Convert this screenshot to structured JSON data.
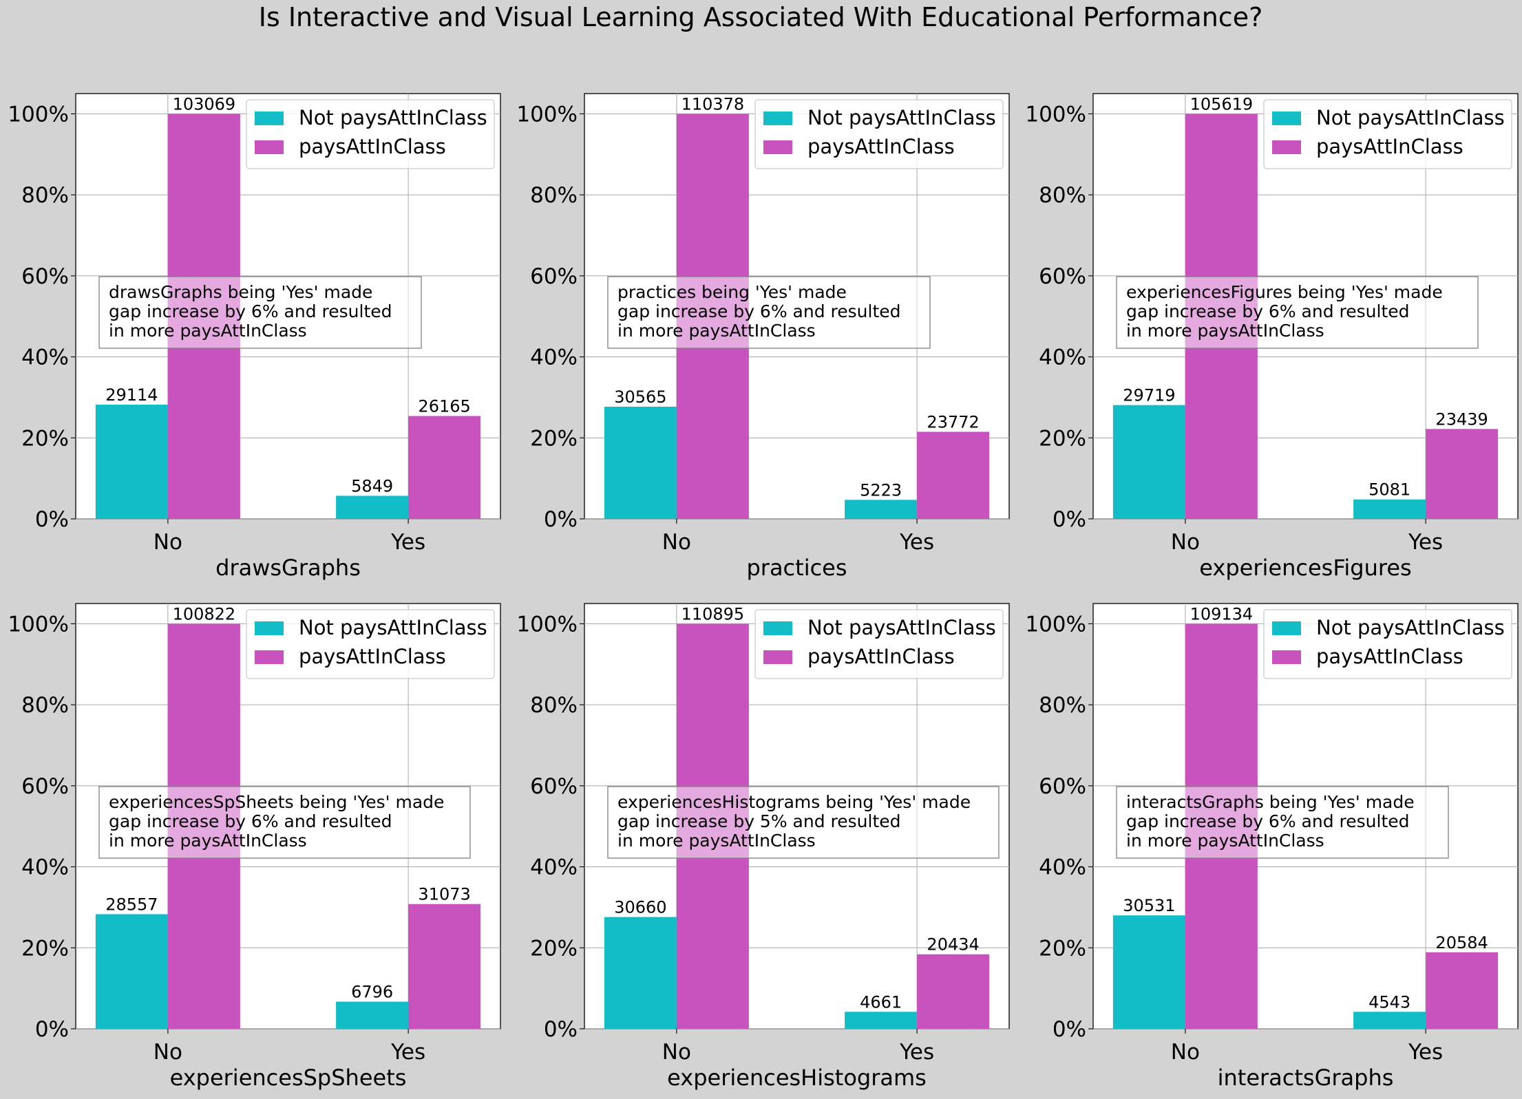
{
  "figure": {
    "title": "Is Interactive and Visual Learning Associated With Educational Performance?"
  },
  "colors": {
    "not_pays": "#12bdc7",
    "pays": "#c853be"
  },
  "chart_data": [
    {
      "type": "bar",
      "xlabel": "drawsGraphs",
      "categories": [
        "No",
        "Yes"
      ],
      "ylim": [
        0,
        105
      ],
      "yticks": [
        "0%",
        "20%",
        "40%",
        "60%",
        "80%",
        "100%"
      ],
      "legend": [
        "Not paysAttInClass",
        "paysAttInClass"
      ],
      "legend_position": "top-right",
      "grid": true,
      "series": [
        {
          "name": "Not paysAttInClass",
          "values": [
            28.2,
            5.7
          ],
          "labels": [
            "29114",
            "5849"
          ]
        },
        {
          "name": "paysAttInClass",
          "values": [
            100,
            25.4
          ],
          "labels": [
            "103069",
            "26165"
          ]
        }
      ],
      "annotation": [
        "drawsGraphs being 'Yes' made",
        "gap increase by 6% and resulted",
        "in more paysAttInClass"
      ]
    },
    {
      "type": "bar",
      "xlabel": "practices",
      "categories": [
        "No",
        "Yes"
      ],
      "ylim": [
        0,
        105
      ],
      "yticks": [
        "0%",
        "20%",
        "40%",
        "60%",
        "80%",
        "100%"
      ],
      "legend": [
        "Not paysAttInClass",
        "paysAttInClass"
      ],
      "legend_position": "top-right",
      "grid": true,
      "series": [
        {
          "name": "Not paysAttInClass",
          "values": [
            27.7,
            4.7
          ],
          "labels": [
            "30565",
            "5223"
          ]
        },
        {
          "name": "paysAttInClass",
          "values": [
            100,
            21.5
          ],
          "labels": [
            "110378",
            "23772"
          ]
        }
      ],
      "annotation": [
        "practices being 'Yes' made",
        "gap increase by 6% and resulted",
        "in more paysAttInClass"
      ]
    },
    {
      "type": "bar",
      "xlabel": "experiencesFigures",
      "categories": [
        "No",
        "Yes"
      ],
      "ylim": [
        0,
        105
      ],
      "yticks": [
        "0%",
        "20%",
        "40%",
        "60%",
        "80%",
        "100%"
      ],
      "legend": [
        "Not paysAttInClass",
        "paysAttInClass"
      ],
      "legend_position": "top-right",
      "grid": true,
      "series": [
        {
          "name": "Not paysAttInClass",
          "values": [
            28.1,
            4.8
          ],
          "labels": [
            "29719",
            "5081"
          ]
        },
        {
          "name": "paysAttInClass",
          "values": [
            100,
            22.2
          ],
          "labels": [
            "105619",
            "23439"
          ]
        }
      ],
      "annotation": [
        "experiencesFigures being 'Yes' made",
        "gap increase by 6% and resulted",
        "in more paysAttInClass"
      ]
    },
    {
      "type": "bar",
      "xlabel": "experiencesSpSheets",
      "categories": [
        "No",
        "Yes"
      ],
      "ylim": [
        0,
        105
      ],
      "yticks": [
        "0%",
        "20%",
        "40%",
        "60%",
        "80%",
        "100%"
      ],
      "legend": [
        "Not paysAttInClass",
        "paysAttInClass"
      ],
      "legend_position": "top-right",
      "grid": true,
      "series": [
        {
          "name": "Not paysAttInClass",
          "values": [
            28.3,
            6.7
          ],
          "labels": [
            "28557",
            "6796"
          ]
        },
        {
          "name": "paysAttInClass",
          "values": [
            100,
            30.8
          ],
          "labels": [
            "100822",
            "31073"
          ]
        }
      ],
      "annotation": [
        "experiencesSpSheets being 'Yes' made",
        "gap increase by 6% and resulted",
        "in more paysAttInClass"
      ]
    },
    {
      "type": "bar",
      "xlabel": "experiencesHistograms",
      "categories": [
        "No",
        "Yes"
      ],
      "ylim": [
        0,
        105
      ],
      "yticks": [
        "0%",
        "20%",
        "40%",
        "60%",
        "80%",
        "100%"
      ],
      "legend": [
        "Not paysAttInClass",
        "paysAttInClass"
      ],
      "legend_position": "top-right",
      "grid": true,
      "series": [
        {
          "name": "Not paysAttInClass",
          "values": [
            27.6,
            4.2
          ],
          "labels": [
            "30660",
            "4661"
          ]
        },
        {
          "name": "paysAttInClass",
          "values": [
            100,
            18.4
          ],
          "labels": [
            "110895",
            "20434"
          ]
        }
      ],
      "annotation": [
        "experiencesHistograms being 'Yes' made",
        "gap increase by 5% and resulted",
        "in more paysAttInClass"
      ]
    },
    {
      "type": "bar",
      "xlabel": "interactsGraphs",
      "categories": [
        "No",
        "Yes"
      ],
      "ylim": [
        0,
        105
      ],
      "yticks": [
        "0%",
        "20%",
        "40%",
        "60%",
        "80%",
        "100%"
      ],
      "legend": [
        "Not paysAttInClass",
        "paysAttInClass"
      ],
      "legend_position": "top-right",
      "grid": true,
      "series": [
        {
          "name": "Not paysAttInClass",
          "values": [
            28.0,
            4.2
          ],
          "labels": [
            "30531",
            "4543"
          ]
        },
        {
          "name": "paysAttInClass",
          "values": [
            100,
            18.9
          ],
          "labels": [
            "109134",
            "20584"
          ]
        }
      ],
      "annotation": [
        "interactsGraphs being 'Yes' made",
        "gap increase by 6% and resulted",
        "in more paysAttInClass"
      ]
    }
  ]
}
